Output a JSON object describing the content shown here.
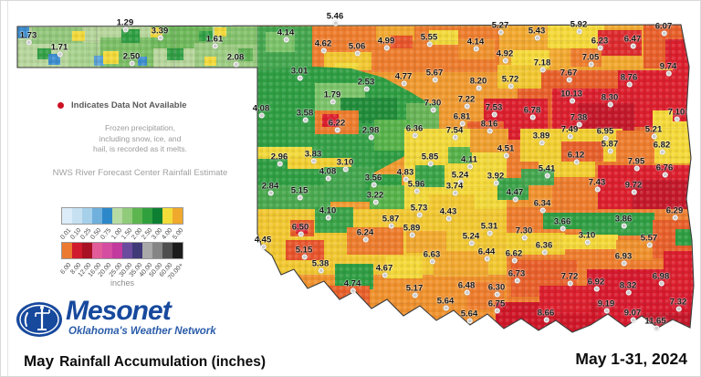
{
  "notes": {
    "data_not_available": "Indicates Data Not Available",
    "frozen_lines": [
      "Frozen precipitation,",
      "including snow, ice, and",
      "hail, is recorded as it melts."
    ],
    "source": "NWS River Forecast Center Rainfall Estimate"
  },
  "logo": {
    "wordmark": "Mesonet",
    "tagline": "Oklahoma's Weather Network"
  },
  "footer": {
    "title_month": "May",
    "title_text": "Rainfall Accumulation (inches)",
    "date_range": "May 1-31, 2024"
  },
  "legend": {
    "unit_label": "inches",
    "row1": {
      "labels": [
        "0.01",
        "0.10",
        "0.25",
        "0.50",
        "0.75",
        "1.00",
        "1.50",
        "2.00",
        "2.50",
        "3.00",
        "4.00",
        "5.00"
      ],
      "colors": [
        "#dcecf8",
        "#c6e0f2",
        "#a6d0ea",
        "#6fb0dd",
        "#2d88c9",
        "#b6dba3",
        "#8fcb7a",
        "#5db550",
        "#2fa03d",
        "#0d7f33",
        "#f2dc3a",
        "#f0a92d"
      ]
    },
    "row2": {
      "labels": [
        "6.00",
        "8.00",
        "12.00",
        "16.00",
        "20.00",
        "25.00",
        "30.00",
        "35.00",
        "40.00",
        "50.00",
        "60.00",
        "70.00+"
      ],
      "colors": [
        "#ec7a30",
        "#cf1b2d",
        "#a81124",
        "#e25c99",
        "#d44da1",
        "#c23a9d",
        "#6a4b9e",
        "#403a78",
        "#a9a9a9",
        "#858585",
        "#4f4f4f",
        "#1c1c1c"
      ]
    }
  },
  "colors": {
    "state_outline": "#3c3c3c",
    "label_text": "#161616",
    "logo_blue": "#17499d",
    "not_available_dot": "#cc1122"
  },
  "map": {
    "values": [
      [
        "1.73",
        30,
        38
      ],
      [
        "1.29",
        136,
        24
      ],
      [
        "3.39",
        174,
        33
      ],
      [
        "1.61",
        234,
        42
      ],
      [
        "1.71",
        64,
        51
      ],
      [
        "2.50",
        143,
        61
      ],
      [
        "2.08",
        257,
        62
      ],
      [
        "5.46",
        366,
        17
      ],
      [
        "4.14",
        312,
        35
      ],
      [
        "4.62",
        353,
        47
      ],
      [
        "5.06",
        390,
        50
      ],
      [
        "4.99",
        422,
        44
      ],
      [
        "5.55",
        469,
        40
      ],
      [
        "4.14",
        520,
        45
      ],
      [
        "5.27",
        547,
        27
      ],
      [
        "5.43",
        587,
        33
      ],
      [
        "5.92",
        633,
        26
      ],
      [
        "6.23",
        656,
        44
      ],
      [
        "6.47",
        692,
        42
      ],
      [
        "6.07",
        726,
        28
      ],
      [
        "3.01",
        327,
        77
      ],
      [
        "4.92",
        552,
        58
      ],
      [
        "5.67",
        475,
        79
      ],
      [
        "4.77",
        441,
        83
      ],
      [
        "8.20",
        523,
        88
      ],
      [
        "5.72",
        558,
        86
      ],
      [
        "7.18",
        593,
        68
      ],
      [
        "7.05",
        646,
        62
      ],
      [
        "7.67",
        622,
        79
      ],
      [
        "9.74",
        731,
        72
      ],
      [
        "8.76",
        688,
        84
      ],
      [
        "2.53",
        400,
        89
      ],
      [
        "1.79",
        363,
        103
      ],
      [
        "10.13",
        625,
        102
      ],
      [
        "8.30",
        667,
        106
      ],
      [
        "7.30",
        473,
        112
      ],
      [
        "7.22",
        510,
        108
      ],
      [
        "7.53",
        540,
        117
      ],
      [
        "6.81",
        505,
        127
      ],
      [
        "8.16",
        535,
        135
      ],
      [
        "6.78",
        582,
        120
      ],
      [
        "7.38",
        633,
        128
      ],
      [
        "7.10",
        740,
        122
      ],
      [
        "4.08",
        285,
        118
      ],
      [
        "3.58",
        333,
        123
      ],
      [
        "6.22",
        368,
        134
      ],
      [
        "2.98",
        405,
        142
      ],
      [
        "6.36",
        453,
        140
      ],
      [
        "7.54",
        497,
        142
      ],
      [
        "7.49",
        623,
        141
      ],
      [
        "6.95",
        662,
        143
      ],
      [
        "5.21",
        715,
        141
      ],
      [
        "3.89",
        592,
        148
      ],
      [
        "5.87",
        667,
        157
      ],
      [
        "6.82",
        724,
        158
      ],
      [
        "4.51",
        553,
        162
      ],
      [
        "2.96",
        305,
        171
      ],
      [
        "3.83",
        342,
        168
      ],
      [
        "5.85",
        470,
        171
      ],
      [
        "4.11",
        513,
        174
      ],
      [
        "6.12",
        630,
        169
      ],
      [
        "7.95",
        696,
        176
      ],
      [
        "3.10",
        377,
        177
      ],
      [
        "4.08",
        358,
        187
      ],
      [
        "4.83",
        443,
        188
      ],
      [
        "5.24",
        503,
        191
      ],
      [
        "3.92",
        542,
        192
      ],
      [
        "5.41",
        598,
        184
      ],
      [
        "6.76",
        727,
        183
      ],
      [
        "2.84",
        295,
        203
      ],
      [
        "5.15",
        327,
        208
      ],
      [
        "3.56",
        408,
        194
      ],
      [
        "5.96",
        455,
        201
      ],
      [
        "3.74",
        497,
        203
      ],
      [
        "7.43",
        653,
        199
      ],
      [
        "9.72",
        693,
        202
      ],
      [
        "3.22",
        410,
        213
      ],
      [
        "4.47",
        563,
        210
      ],
      [
        "4.10",
        358,
        230
      ],
      [
        "5.73",
        458,
        227
      ],
      [
        "4.43",
        490,
        231
      ],
      [
        "6.34",
        593,
        222
      ],
      [
        "6.29",
        738,
        230
      ],
      [
        "6.50",
        328,
        248
      ],
      [
        "5.87",
        427,
        239
      ],
      [
        "5.89",
        450,
        249
      ],
      [
        "3.66",
        615,
        242
      ],
      [
        "3.86",
        682,
        239
      ],
      [
        "4.45",
        287,
        262
      ],
      [
        "6.24",
        399,
        254
      ],
      [
        "5.31",
        535,
        247
      ],
      [
        "7.30",
        573,
        252
      ],
      [
        "3.10",
        642,
        257
      ],
      [
        "5.57",
        710,
        260
      ],
      [
        "5.24",
        515,
        258
      ],
      [
        "5.15",
        332,
        273
      ],
      [
        "6.63",
        472,
        278
      ],
      [
        "6.36",
        595,
        268
      ],
      [
        "6.44",
        532,
        275
      ],
      [
        "6.62",
        562,
        277
      ],
      [
        "6.93",
        682,
        280
      ],
      [
        "5.38",
        350,
        288
      ],
      [
        "4.67",
        420,
        293
      ],
      [
        "6.73",
        565,
        299
      ],
      [
        "7.72",
        623,
        302
      ],
      [
        "6.92",
        652,
        308
      ],
      [
        "6.98",
        723,
        302
      ],
      [
        "4.74",
        385,
        310
      ],
      [
        "6.48",
        510,
        312
      ],
      [
        "6.30",
        543,
        314
      ],
      [
        "8.32",
        687,
        312
      ],
      [
        "5.17",
        453,
        315
      ],
      [
        "6.75",
        543,
        332
      ],
      [
        "9.19",
        663,
        332
      ],
      [
        "7.32",
        742,
        330
      ],
      [
        "5.64",
        487,
        329
      ],
      [
        "5.64",
        513,
        343
      ],
      [
        "8.66",
        597,
        342
      ],
      [
        "9.07",
        692,
        342
      ],
      [
        "11.65",
        717,
        351
      ]
    ],
    "regions": [
      [
        "r",
        4,
        16,
        263,
        45,
        "#b7d69c"
      ],
      [
        "r",
        20,
        17,
        55,
        18,
        "#93c77c"
      ],
      [
        "r",
        60,
        34,
        45,
        27,
        "#a8d28e"
      ],
      [
        "r",
        95,
        28,
        58,
        33,
        "#7cbf66"
      ],
      [
        "r",
        150,
        16,
        68,
        24,
        "#6fb95b"
      ],
      [
        "r",
        198,
        34,
        69,
        27,
        "#9ccb82"
      ],
      [
        "r",
        228,
        16,
        39,
        20,
        "#85c26d"
      ],
      [
        "r",
        118,
        19,
        20,
        15,
        "#2f9e43"
      ],
      [
        "r",
        168,
        40,
        18,
        13,
        "#2f9e43"
      ],
      [
        "r",
        26,
        40,
        15,
        12,
        "#35a047"
      ],
      [
        "r",
        203,
        21,
        15,
        11,
        "#2f9e43"
      ],
      [
        "r",
        246,
        40,
        16,
        14,
        "#5db052"
      ],
      [
        "r",
        4,
        16,
        13,
        13,
        "#3e8ed0"
      ],
      [
        "r",
        38,
        46,
        13,
        12,
        "#3e8ed0"
      ],
      [
        "r",
        88,
        48,
        11,
        11,
        "#5ba3d9"
      ],
      [
        "r",
        136,
        49,
        10,
        10,
        "#3e8ed0"
      ],
      [
        "r",
        64,
        21,
        14,
        11,
        "#f2d93b"
      ],
      [
        "r",
        150,
        17,
        13,
        11,
        "#f2d93b"
      ],
      [
        "r",
        98,
        43,
        17,
        14,
        "#f2d93b"
      ],
      [
        "r",
        220,
        17,
        13,
        10,
        "#f2d93b"
      ],
      [
        "r",
        209,
        49,
        13,
        10,
        "#f2d93b"
      ],
      [
        "r",
        267,
        14,
        479,
        348,
        "#f09a30"
      ],
      [
        "r",
        267,
        16,
        60,
        64,
        "#44a64f"
      ],
      [
        "r",
        276,
        22,
        32,
        22,
        "#7cc36a"
      ],
      [
        "r",
        327,
        16,
        205,
        50,
        "#ee7d2e"
      ],
      [
        "r",
        340,
        44,
        52,
        20,
        "#f2c832"
      ],
      [
        "r",
        397,
        16,
        42,
        16,
        "#f2a930"
      ],
      [
        "r",
        455,
        20,
        32,
        16,
        "#f2d93b"
      ],
      [
        "r",
        413,
        26,
        24,
        14,
        "#e8542b"
      ],
      [
        "r",
        352,
        56,
        26,
        13,
        "#f2d93b"
      ],
      [
        "r",
        487,
        30,
        40,
        22,
        "#f0922e"
      ],
      [
        "r",
        532,
        14,
        214,
        52,
        "#f2a930"
      ],
      [
        "r",
        585,
        14,
        62,
        26,
        "#f5d93a"
      ],
      [
        "r",
        640,
        20,
        48,
        28,
        "#dc2a2e"
      ],
      [
        "r",
        690,
        14,
        56,
        48,
        "#e8602b"
      ],
      [
        "r",
        714,
        30,
        32,
        32,
        "#dc1f2e"
      ],
      [
        "r",
        545,
        42,
        42,
        20,
        "#f5d93a"
      ],
      [
        "r",
        610,
        40,
        34,
        20,
        "#ee7d2e"
      ],
      [
        "r",
        552,
        64,
        194,
        78,
        "#e8602b"
      ],
      [
        "r",
        590,
        84,
        84,
        52,
        "#dc1f2e"
      ],
      [
        "r",
        662,
        64,
        84,
        62,
        "#dc1f2e"
      ],
      [
        "r",
        618,
        100,
        62,
        40,
        "#c4182b"
      ],
      [
        "r",
        530,
        58,
        48,
        26,
        "#f2c832"
      ],
      [
        "r",
        515,
        95,
        70,
        46,
        "#dc1f2e"
      ],
      [
        "r",
        497,
        120,
        40,
        26,
        "#e8602b"
      ],
      [
        "p",
        "267,64 330,60 370,62 405,72 435,88 455,100 462,118 450,142 425,160 395,176 365,188 335,202 305,212 285,216 267,214",
        "#2f9e43"
      ],
      [
        "r",
        330,
        78,
        55,
        32,
        "#7cc36a"
      ],
      [
        "r",
        358,
        94,
        62,
        36,
        "#218c3a"
      ],
      [
        "r",
        300,
        122,
        95,
        55,
        "#35a047"
      ],
      [
        "r",
        430,
        100,
        36,
        36,
        "#6ab558"
      ],
      [
        "r",
        330,
        108,
        48,
        26,
        "#ee7d2e"
      ],
      [
        "r",
        338,
        112,
        18,
        14,
        "#dc1f2e"
      ],
      [
        "r",
        267,
        148,
        60,
        13,
        "#f2d93b"
      ],
      [
        "r",
        300,
        160,
        70,
        12,
        "#f2cf32"
      ],
      [
        "r",
        395,
        118,
        40,
        34,
        "#57b34a"
      ],
      [
        "r",
        267,
        190,
        80,
        26,
        "#4aa94f"
      ],
      [
        "r",
        340,
        170,
        55,
        38,
        "#44a64f"
      ],
      [
        "r",
        385,
        178,
        40,
        30,
        "#2f9e43"
      ],
      [
        "r",
        390,
        190,
        60,
        26,
        "#57b34a"
      ],
      [
        "r",
        428,
        128,
        112,
        90,
        "#f2d93b"
      ],
      [
        "r",
        440,
        168,
        32,
        24,
        "#3aa348"
      ],
      [
        "r",
        476,
        148,
        26,
        18,
        "#57b34a"
      ],
      [
        "r",
        500,
        128,
        42,
        26,
        "#f0a030"
      ],
      [
        "r",
        488,
        175,
        40,
        22,
        "#f5d93a"
      ],
      [
        "r",
        455,
        200,
        50,
        20,
        "#f2c832"
      ],
      [
        "r",
        540,
        140,
        160,
        84,
        "#ee7d2e"
      ],
      [
        "r",
        555,
        128,
        112,
        36,
        "#f2cf32"
      ],
      [
        "r",
        575,
        155,
        62,
        26,
        "#f2cf32"
      ],
      [
        "r",
        600,
        142,
        46,
        22,
        "#e8602b"
      ],
      [
        "r",
        640,
        168,
        106,
        48,
        "#dc1f2e"
      ],
      [
        "r",
        678,
        184,
        68,
        32,
        "#c4182b"
      ],
      [
        "r",
        540,
        186,
        50,
        28,
        "#f0922e"
      ],
      [
        "r",
        530,
        182,
        34,
        24,
        "#3aa348"
      ],
      [
        "r",
        556,
        172,
        36,
        18,
        "#44a64f"
      ],
      [
        "r",
        700,
        108,
        46,
        58,
        "#f5d93a"
      ],
      [
        "r",
        660,
        130,
        42,
        36,
        "#ee7d2e"
      ],
      [
        "r",
        722,
        62,
        24,
        58,
        "#dc1f2e"
      ],
      [
        "r",
        267,
        216,
        273,
        96,
        "#f2c832"
      ],
      [
        "r",
        330,
        214,
        42,
        28,
        "#3aa348"
      ],
      [
        "r",
        365,
        236,
        62,
        30,
        "#ee7d2e"
      ],
      [
        "r",
        303,
        228,
        26,
        18,
        "#e8602b"
      ],
      [
        "r",
        309,
        232,
        13,
        11,
        "#dc1f2e"
      ],
      [
        "r",
        298,
        250,
        42,
        22,
        "#e8542b"
      ],
      [
        "r",
        430,
        240,
        44,
        24,
        "#f2a930"
      ],
      [
        "r",
        290,
        288,
        255,
        58,
        "#f0922e"
      ],
      [
        "r",
        352,
        276,
        42,
        28,
        "#2f9e43"
      ],
      [
        "r",
        408,
        268,
        40,
        24,
        "#f5d93a"
      ],
      [
        "r",
        330,
        300,
        60,
        30,
        "#e8602b"
      ],
      [
        "r",
        460,
        262,
        60,
        28,
        "#f2a930"
      ],
      [
        "r",
        497,
        296,
        40,
        30,
        "#ee7d2e"
      ],
      [
        "r",
        540,
        216,
        206,
        146,
        "#ee7d2e"
      ],
      [
        "r",
        580,
        220,
        122,
        18,
        "#2f9e43"
      ],
      [
        "r",
        622,
        232,
        84,
        13,
        "#35a047"
      ],
      [
        "r",
        540,
        242,
        64,
        24,
        "#f2cf32"
      ],
      [
        "r",
        598,
        244,
        64,
        16,
        "#f5d93a"
      ],
      [
        "r",
        700,
        228,
        46,
        42,
        "#e8602b"
      ],
      [
        "r",
        545,
        272,
        72,
        40,
        "#e8602b"
      ],
      [
        "r",
        628,
        282,
        118,
        74,
        "#d81a2e"
      ],
      [
        "r",
        528,
        318,
        112,
        40,
        "#cf1728"
      ],
      [
        "r",
        576,
        300,
        56,
        30,
        "#dc1f2e"
      ],
      [
        "r",
        712,
        262,
        34,
        44,
        "#dc1f2e"
      ],
      [
        "r",
        725,
        238,
        21,
        18,
        "#2f9e43"
      ],
      [
        "r",
        660,
        250,
        40,
        22,
        "#f0922e"
      ],
      [
        "r",
        688,
        330,
        58,
        32,
        "#c4182b"
      ]
    ]
  }
}
